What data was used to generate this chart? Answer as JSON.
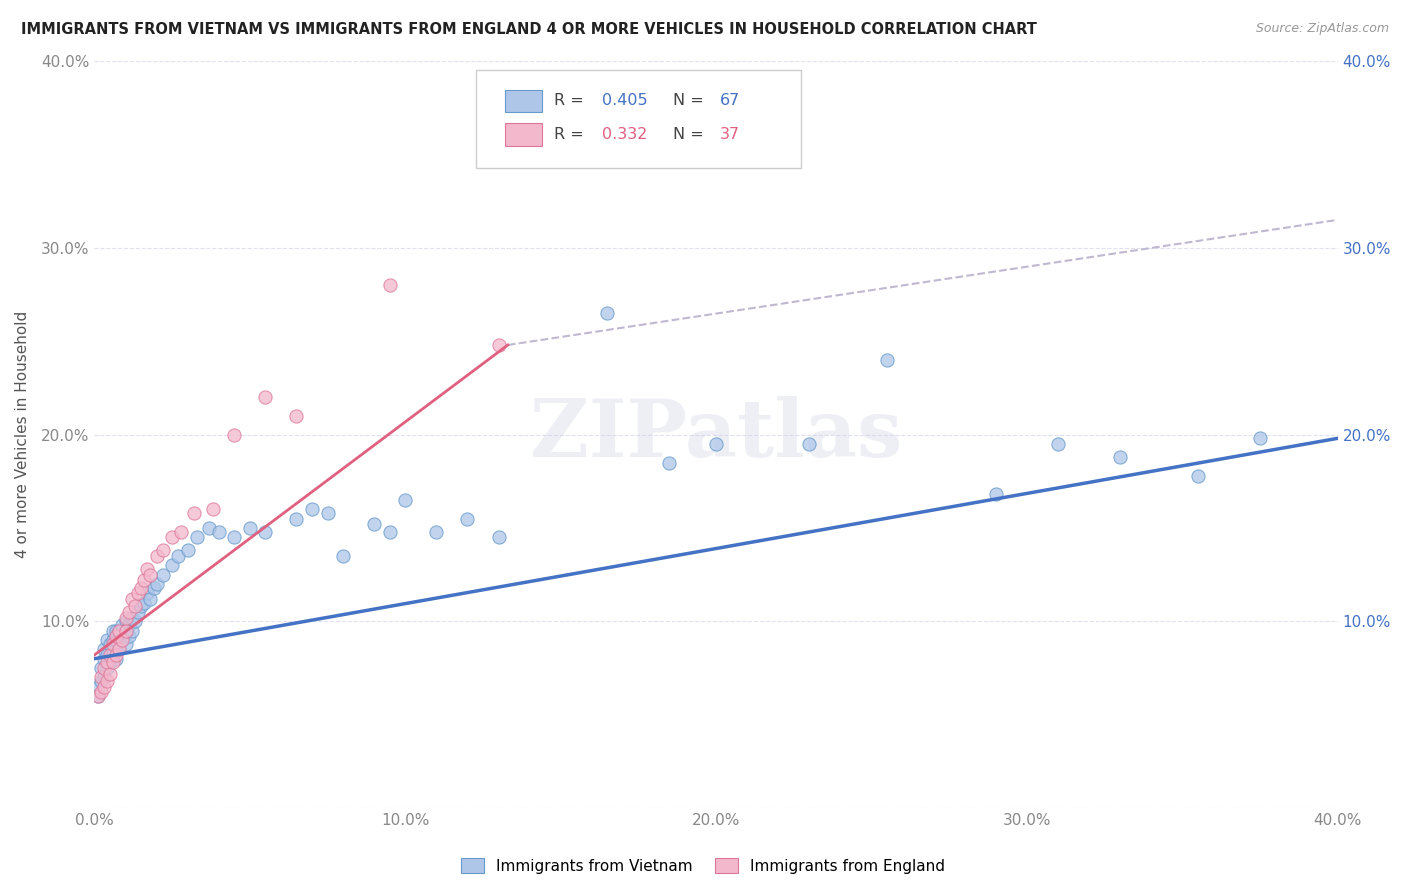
{
  "title": "IMMIGRANTS FROM VIETNAM VS IMMIGRANTS FROM ENGLAND 4 OR MORE VEHICLES IN HOUSEHOLD CORRELATION CHART",
  "source": "Source: ZipAtlas.com",
  "ylabel": "4 or more Vehicles in Household",
  "xlim": [
    0.0,
    0.4
  ],
  "ylim": [
    0.0,
    0.4
  ],
  "xtick_vals": [
    0.0,
    0.1,
    0.2,
    0.3,
    0.4
  ],
  "xtick_labels": [
    "0.0%",
    "10.0%",
    "20.0%",
    "30.0%",
    "40.0%"
  ],
  "ytick_vals": [
    0.0,
    0.1,
    0.2,
    0.3,
    0.4
  ],
  "ytick_labels": [
    "",
    "10.0%",
    "20.0%",
    "30.0%",
    "40.0%"
  ],
  "right_ytick_vals": [
    0.1,
    0.2,
    0.3,
    0.4
  ],
  "right_ytick_labels": [
    "10.0%",
    "20.0%",
    "30.0%",
    "40.0%"
  ],
  "legend_R_vietnam": "0.405",
  "legend_N_vietnam": "67",
  "legend_R_england": "0.332",
  "legend_N_england": "37",
  "color_vietnam_fill": "#aec6e8",
  "color_vietnam_edge": "#6699cc",
  "color_england_fill": "#f4b8cc",
  "color_england_edge": "#dd7799",
  "color_trendline_vietnam": "#4472c4",
  "color_trendline_england": "#e06080",
  "color_dashed": "#c0b8d0",
  "watermark": "ZIPatlas",
  "trendline_vietnam_x0": 0.0,
  "trendline_vietnam_x1": 0.4,
  "trendline_vietnam_y0": 0.08,
  "trendline_vietnam_y1": 0.198,
  "trendline_england_x0": 0.0,
  "trendline_england_x1": 0.133,
  "trendline_england_y0": 0.082,
  "trendline_england_y1": 0.248,
  "dashed_line_x0": 0.133,
  "dashed_line_x1": 0.4,
  "dashed_line_y0": 0.248,
  "dashed_line_y1": 0.315,
  "vietnam_x": [
    0.001,
    0.001,
    0.002,
    0.002,
    0.003,
    0.003,
    0.003,
    0.004,
    0.004,
    0.004,
    0.005,
    0.005,
    0.006,
    0.006,
    0.006,
    0.007,
    0.007,
    0.007,
    0.008,
    0.008,
    0.009,
    0.009,
    0.01,
    0.01,
    0.01,
    0.011,
    0.011,
    0.012,
    0.012,
    0.013,
    0.014,
    0.015,
    0.016,
    0.017,
    0.018,
    0.019,
    0.02,
    0.022,
    0.025,
    0.027,
    0.03,
    0.033,
    0.037,
    0.04,
    0.045,
    0.05,
    0.055,
    0.065,
    0.07,
    0.075,
    0.08,
    0.09,
    0.095,
    0.1,
    0.11,
    0.12,
    0.13,
    0.165,
    0.185,
    0.2,
    0.23,
    0.255,
    0.29,
    0.31,
    0.33,
    0.355,
    0.375
  ],
  "vietnam_y": [
    0.06,
    0.065,
    0.068,
    0.075,
    0.07,
    0.08,
    0.085,
    0.075,
    0.082,
    0.09,
    0.078,
    0.088,
    0.082,
    0.09,
    0.095,
    0.08,
    0.09,
    0.095,
    0.085,
    0.095,
    0.09,
    0.098,
    0.088,
    0.095,
    0.1,
    0.092,
    0.098,
    0.095,
    0.102,
    0.1,
    0.105,
    0.108,
    0.11,
    0.115,
    0.112,
    0.118,
    0.12,
    0.125,
    0.13,
    0.135,
    0.138,
    0.145,
    0.15,
    0.148,
    0.145,
    0.15,
    0.148,
    0.155,
    0.16,
    0.158,
    0.135,
    0.152,
    0.148,
    0.165,
    0.148,
    0.155,
    0.145,
    0.265,
    0.185,
    0.195,
    0.195,
    0.24,
    0.168,
    0.195,
    0.188,
    0.178,
    0.198
  ],
  "england_x": [
    0.001,
    0.002,
    0.002,
    0.003,
    0.003,
    0.004,
    0.004,
    0.005,
    0.005,
    0.006,
    0.006,
    0.007,
    0.007,
    0.008,
    0.008,
    0.009,
    0.01,
    0.01,
    0.011,
    0.012,
    0.013,
    0.014,
    0.015,
    0.016,
    0.017,
    0.018,
    0.02,
    0.022,
    0.025,
    0.028,
    0.032,
    0.038,
    0.045,
    0.055,
    0.065,
    0.095,
    0.13
  ],
  "england_y": [
    0.06,
    0.062,
    0.07,
    0.065,
    0.075,
    0.068,
    0.078,
    0.072,
    0.082,
    0.078,
    0.088,
    0.082,
    0.092,
    0.085,
    0.095,
    0.09,
    0.095,
    0.102,
    0.105,
    0.112,
    0.108,
    0.115,
    0.118,
    0.122,
    0.128,
    0.125,
    0.135,
    0.138,
    0.145,
    0.148,
    0.158,
    0.16,
    0.2,
    0.22,
    0.21,
    0.28,
    0.248
  ]
}
